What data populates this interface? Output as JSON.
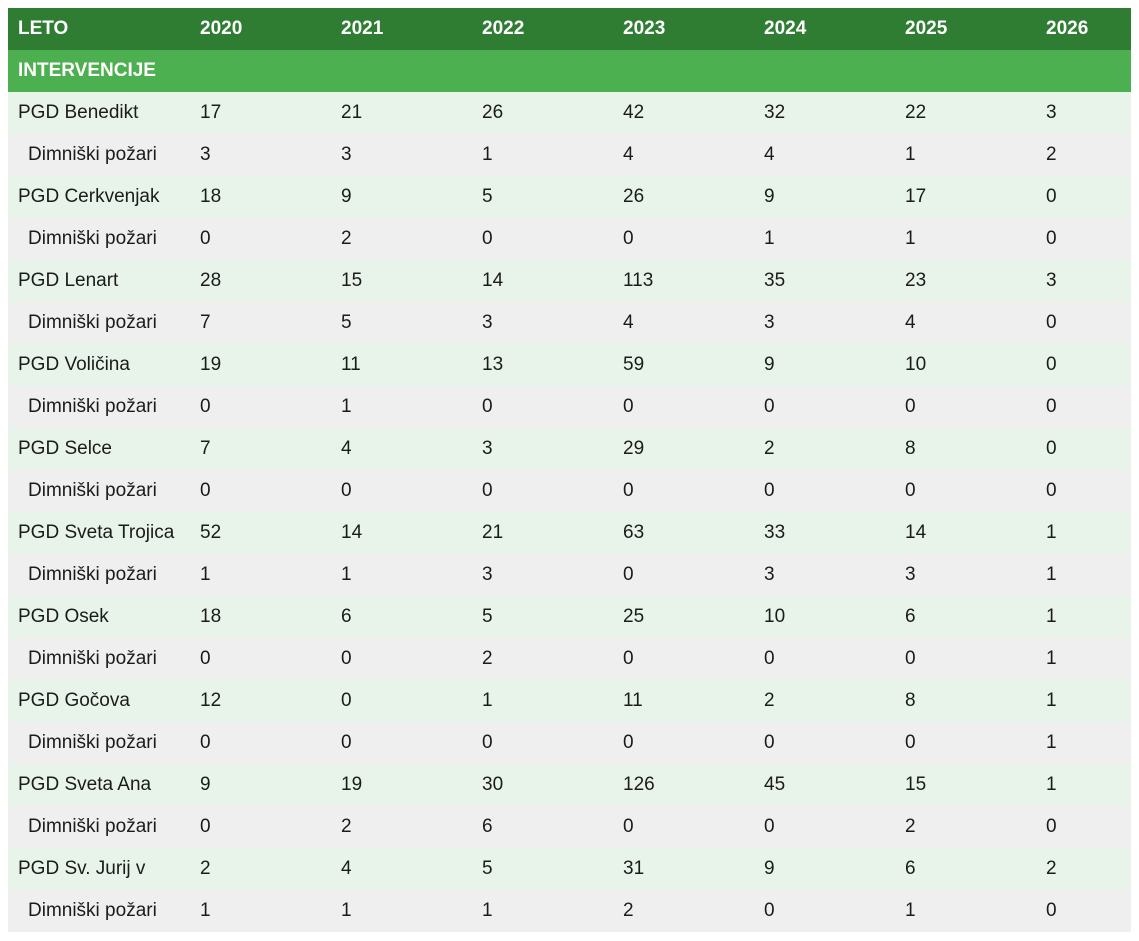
{
  "colors": {
    "header_bg": "#2F7D33",
    "section_bg": "#4CAF50",
    "row_station_bg": "#E8F4E9",
    "row_chimney_bg": "#EFEFEF",
    "header_text": "#FFFFFF",
    "body_text": "#1B1B1B",
    "page_bg": "#FFFFFF"
  },
  "chart_data": {
    "type": "table",
    "columns": [
      "LETO",
      "2020",
      "2021",
      "2022",
      "2023",
      "2024",
      "2025",
      "2026"
    ],
    "section_header": "INTERVENCIJE",
    "rows": [
      {
        "label": "PGD Benedikt",
        "indent": false,
        "values": [
          17,
          21,
          26,
          42,
          32,
          22,
          3
        ]
      },
      {
        "label": "Dimniški požari",
        "indent": true,
        "values": [
          3,
          3,
          1,
          4,
          4,
          1,
          2
        ]
      },
      {
        "label": "PGD Cerkvenjak",
        "indent": false,
        "values": [
          18,
          9,
          5,
          26,
          9,
          17,
          0
        ]
      },
      {
        "label": "Dimniški požari",
        "indent": true,
        "values": [
          0,
          2,
          0,
          0,
          1,
          1,
          0
        ]
      },
      {
        "label": "PGD Lenart",
        "indent": false,
        "values": [
          28,
          15,
          14,
          113,
          35,
          23,
          3
        ]
      },
      {
        "label": "Dimniški požari",
        "indent": true,
        "values": [
          7,
          5,
          3,
          4,
          3,
          4,
          0
        ]
      },
      {
        "label": "PGD Voličina",
        "indent": false,
        "values": [
          19,
          11,
          13,
          59,
          9,
          10,
          0
        ]
      },
      {
        "label": "Dimniški požari",
        "indent": true,
        "values": [
          0,
          1,
          0,
          0,
          0,
          0,
          0
        ]
      },
      {
        "label": "PGD Selce",
        "indent": false,
        "values": [
          7,
          4,
          3,
          29,
          2,
          8,
          0
        ]
      },
      {
        "label": "Dimniški požari",
        "indent": true,
        "values": [
          0,
          0,
          0,
          0,
          0,
          0,
          0
        ]
      },
      {
        "label": "PGD Sveta Trojica",
        "indent": false,
        "values": [
          52,
          14,
          21,
          63,
          33,
          14,
          1
        ]
      },
      {
        "label": "Dimniški požari",
        "indent": true,
        "values": [
          1,
          1,
          3,
          0,
          3,
          3,
          1
        ]
      },
      {
        "label": "PGD Osek",
        "indent": false,
        "values": [
          18,
          6,
          5,
          25,
          10,
          6,
          1
        ]
      },
      {
        "label": "Dimniški požari",
        "indent": true,
        "values": [
          0,
          0,
          2,
          0,
          0,
          0,
          1
        ]
      },
      {
        "label": "PGD Gočova",
        "indent": false,
        "values": [
          12,
          0,
          1,
          11,
          2,
          8,
          1
        ]
      },
      {
        "label": "Dimniški požari",
        "indent": true,
        "values": [
          0,
          0,
          0,
          0,
          0,
          0,
          1
        ]
      },
      {
        "label": "PGD Sveta Ana",
        "indent": false,
        "values": [
          9,
          19,
          30,
          126,
          45,
          15,
          1
        ]
      },
      {
        "label": "Dimniški požari",
        "indent": true,
        "values": [
          0,
          2,
          6,
          0,
          0,
          2,
          0
        ]
      },
      {
        "label": "PGD Sv. Jurij v",
        "indent": false,
        "values": [
          2,
          4,
          5,
          31,
          9,
          6,
          2
        ]
      },
      {
        "label": "Dimniški požari",
        "indent": true,
        "values": [
          1,
          1,
          1,
          2,
          0,
          1,
          0
        ]
      }
    ]
  }
}
